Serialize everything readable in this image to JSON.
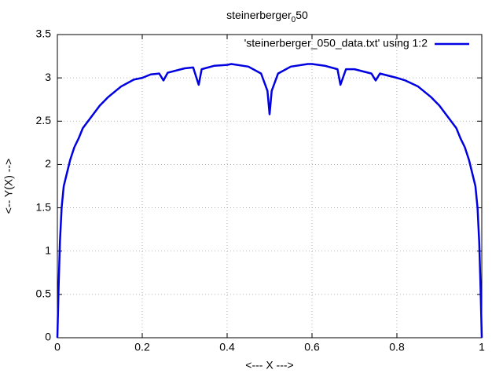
{
  "chart_data": {
    "type": "line",
    "title": {
      "text": "steinerberger",
      "subscript": "0",
      "suffix": "50"
    },
    "x_label": "<--- X --->",
    "y_label": "<-- Y(X) -->",
    "x": [
      0,
      0.003,
      0.006,
      0.01,
      0.015,
      0.02,
      0.03,
      0.04,
      0.05,
      0.06,
      0.08,
      0.1,
      0.12,
      0.15,
      0.18,
      0.2,
      0.22,
      0.24,
      0.25,
      0.26,
      0.3,
      0.32,
      0.333,
      0.34,
      0.37,
      0.4,
      0.41,
      0.45,
      0.48,
      0.495,
      0.5,
      0.505,
      0.52,
      0.55,
      0.59,
      0.6,
      0.63,
      0.66,
      0.667,
      0.68,
      0.7,
      0.74,
      0.75,
      0.76,
      0.8,
      0.82,
      0.85,
      0.88,
      0.9,
      0.92,
      0.94,
      0.95,
      0.96,
      0.97,
      0.98,
      0.985,
      0.99,
      0.994,
      0.997,
      1
    ],
    "series": [
      {
        "name": "'steinerberger_050_data.txt' using 1:2",
        "color": "#0000e0",
        "values": [
          0,
          0.6,
          1.1,
          1.5,
          1.75,
          1.85,
          2.05,
          2.2,
          2.3,
          2.42,
          2.55,
          2.68,
          2.78,
          2.9,
          2.98,
          3.0,
          3.04,
          3.05,
          2.97,
          3.06,
          3.11,
          3.12,
          2.92,
          3.1,
          3.14,
          3.15,
          3.16,
          3.13,
          3.05,
          2.85,
          2.58,
          2.85,
          3.05,
          3.13,
          3.16,
          3.16,
          3.14,
          3.1,
          2.92,
          3.1,
          3.1,
          3.05,
          2.97,
          3.05,
          3.0,
          2.97,
          2.9,
          2.78,
          2.68,
          2.55,
          2.42,
          2.3,
          2.2,
          2.05,
          1.85,
          1.75,
          1.5,
          1.1,
          0.6,
          0
        ]
      }
    ],
    "xlim": [
      0,
      1
    ],
    "xticks": [
      0,
      0.2,
      0.4,
      0.6,
      0.8,
      1
    ],
    "ylim": [
      0,
      3.5
    ],
    "yticks": [
      0,
      0.5,
      1,
      1.5,
      2,
      2.5,
      3,
      3.5
    ],
    "grid": true,
    "legend_position": "top-right"
  }
}
